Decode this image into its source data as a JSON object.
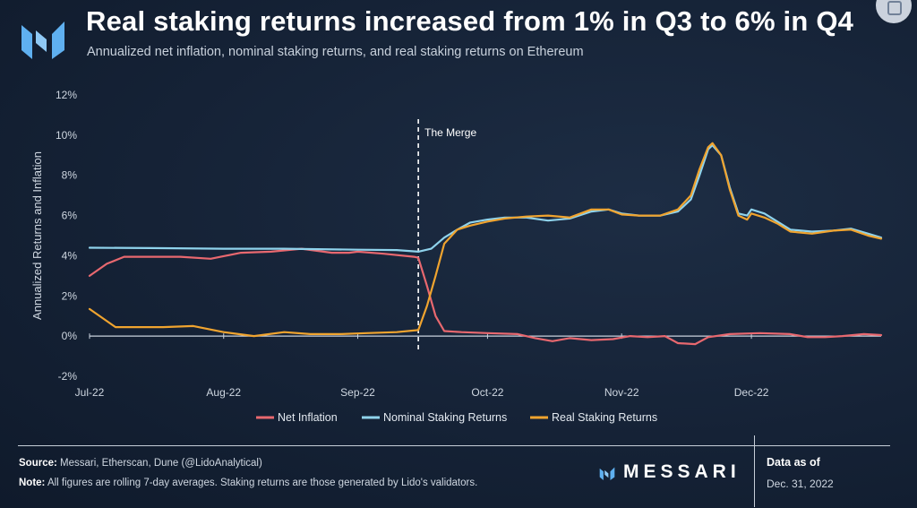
{
  "header": {
    "title": "Real staking returns increased from 1% in Q3 to 6% in Q4",
    "subtitle": "Annualized net inflation, nominal staking returns, and real staking returns on Ethereum"
  },
  "colors": {
    "net_inflation": "#e8686f",
    "nominal": "#8fd3ec",
    "real": "#f0a42f",
    "logo_blue": "#5fb0f0"
  },
  "chart_data": {
    "type": "line",
    "ylabel": "Annualized Returns and Inflation",
    "ylim": [
      -2,
      12
    ],
    "yticks": [
      -2,
      0,
      2,
      4,
      6,
      8,
      10,
      12
    ],
    "ytick_labels": [
      "-2%",
      "0%",
      "2%",
      "4%",
      "6%",
      "8%",
      "10%",
      "12%"
    ],
    "x_range": [
      "2022-07-01",
      "2022-12-31"
    ],
    "xtick_dates": [
      "2022-07-01",
      "2022-08-01",
      "2022-09-01",
      "2022-10-01",
      "2022-11-01",
      "2022-12-01"
    ],
    "xtick_labels": [
      "Jul-22",
      "Aug-22",
      "Sep-22",
      "Oct-22",
      "Nov-22",
      "Dec-22"
    ],
    "annotation": {
      "date": "2022-09-15",
      "label": "The Merge"
    },
    "legend_position": "bottom",
    "series": [
      {
        "name": "Net Inflation",
        "points": [
          [
            "2022-07-01",
            3.0
          ],
          [
            "2022-07-05",
            3.6
          ],
          [
            "2022-07-09",
            3.95
          ],
          [
            "2022-07-15",
            3.95
          ],
          [
            "2022-07-22",
            3.95
          ],
          [
            "2022-07-29",
            3.85
          ],
          [
            "2022-08-05",
            4.15
          ],
          [
            "2022-08-12",
            4.2
          ],
          [
            "2022-08-19",
            4.35
          ],
          [
            "2022-08-26",
            4.15
          ],
          [
            "2022-08-30",
            4.15
          ],
          [
            "2022-09-01",
            4.2
          ],
          [
            "2022-09-07",
            4.1
          ],
          [
            "2022-09-14",
            3.95
          ],
          [
            "2022-09-15",
            3.9
          ],
          [
            "2022-09-17",
            2.5
          ],
          [
            "2022-09-19",
            1.0
          ],
          [
            "2022-09-21",
            0.25
          ],
          [
            "2022-09-25",
            0.2
          ],
          [
            "2022-10-01",
            0.15
          ],
          [
            "2022-10-08",
            0.1
          ],
          [
            "2022-10-12",
            -0.1
          ],
          [
            "2022-10-16",
            -0.25
          ],
          [
            "2022-10-20",
            -0.1
          ],
          [
            "2022-10-25",
            -0.2
          ],
          [
            "2022-10-30",
            -0.15
          ],
          [
            "2022-11-03",
            0.0
          ],
          [
            "2022-11-07",
            -0.05
          ],
          [
            "2022-11-11",
            0.0
          ],
          [
            "2022-11-14",
            -0.35
          ],
          [
            "2022-11-18",
            -0.4
          ],
          [
            "2022-11-21",
            -0.05
          ],
          [
            "2022-11-26",
            0.1
          ],
          [
            "2022-12-03",
            0.15
          ],
          [
            "2022-12-10",
            0.1
          ],
          [
            "2022-12-14",
            -0.05
          ],
          [
            "2022-12-18",
            -0.05
          ],
          [
            "2022-12-22",
            0.0
          ],
          [
            "2022-12-27",
            0.1
          ],
          [
            "2022-12-31",
            0.05
          ]
        ]
      },
      {
        "name": "Nominal Staking Returns",
        "points": [
          [
            "2022-07-01",
            4.4
          ],
          [
            "2022-07-15",
            4.38
          ],
          [
            "2022-08-01",
            4.35
          ],
          [
            "2022-08-15",
            4.35
          ],
          [
            "2022-09-01",
            4.3
          ],
          [
            "2022-09-10",
            4.28
          ],
          [
            "2022-09-15",
            4.2
          ],
          [
            "2022-09-18",
            4.35
          ],
          [
            "2022-09-21",
            4.9
          ],
          [
            "2022-09-24",
            5.3
          ],
          [
            "2022-09-27",
            5.65
          ],
          [
            "2022-10-01",
            5.8
          ],
          [
            "2022-10-05",
            5.9
          ],
          [
            "2022-10-10",
            5.9
          ],
          [
            "2022-10-15",
            5.75
          ],
          [
            "2022-10-20",
            5.85
          ],
          [
            "2022-10-25",
            6.2
          ],
          [
            "2022-10-29",
            6.3
          ],
          [
            "2022-11-01",
            6.1
          ],
          [
            "2022-11-05",
            6.0
          ],
          [
            "2022-11-10",
            6.0
          ],
          [
            "2022-11-14",
            6.2
          ],
          [
            "2022-11-17",
            6.8
          ],
          [
            "2022-11-19",
            8.0
          ],
          [
            "2022-11-21",
            9.3
          ],
          [
            "2022-11-22",
            9.5
          ],
          [
            "2022-11-24",
            9.0
          ],
          [
            "2022-11-26",
            7.4
          ],
          [
            "2022-11-28",
            6.1
          ],
          [
            "2022-11-30",
            6.0
          ],
          [
            "2022-12-01",
            6.3
          ],
          [
            "2022-12-04",
            6.1
          ],
          [
            "2022-12-07",
            5.7
          ],
          [
            "2022-12-10",
            5.3
          ],
          [
            "2022-12-15",
            5.2
          ],
          [
            "2022-12-20",
            5.25
          ],
          [
            "2022-12-24",
            5.35
          ],
          [
            "2022-12-28",
            5.1
          ],
          [
            "2022-12-31",
            4.9
          ]
        ]
      },
      {
        "name": "Real Staking Returns",
        "points": [
          [
            "2022-07-01",
            1.35
          ],
          [
            "2022-07-04",
            0.9
          ],
          [
            "2022-07-07",
            0.45
          ],
          [
            "2022-07-12",
            0.45
          ],
          [
            "2022-07-18",
            0.45
          ],
          [
            "2022-07-25",
            0.5
          ],
          [
            "2022-08-01",
            0.2
          ],
          [
            "2022-08-08",
            0.0
          ],
          [
            "2022-08-15",
            0.2
          ],
          [
            "2022-08-21",
            0.1
          ],
          [
            "2022-08-28",
            0.1
          ],
          [
            "2022-09-03",
            0.15
          ],
          [
            "2022-09-10",
            0.2
          ],
          [
            "2022-09-15",
            0.3
          ],
          [
            "2022-09-17",
            1.5
          ],
          [
            "2022-09-19",
            3.0
          ],
          [
            "2022-09-21",
            4.6
          ],
          [
            "2022-09-24",
            5.3
          ],
          [
            "2022-09-27",
            5.5
          ],
          [
            "2022-10-01",
            5.7
          ],
          [
            "2022-10-05",
            5.85
          ],
          [
            "2022-10-10",
            5.95
          ],
          [
            "2022-10-15",
            6.0
          ],
          [
            "2022-10-20",
            5.9
          ],
          [
            "2022-10-25",
            6.3
          ],
          [
            "2022-10-29",
            6.3
          ],
          [
            "2022-11-01",
            6.05
          ],
          [
            "2022-11-05",
            6.0
          ],
          [
            "2022-11-10",
            6.0
          ],
          [
            "2022-11-14",
            6.3
          ],
          [
            "2022-11-17",
            7.0
          ],
          [
            "2022-11-19",
            8.3
          ],
          [
            "2022-11-21",
            9.4
          ],
          [
            "2022-11-22",
            9.6
          ],
          [
            "2022-11-24",
            9.0
          ],
          [
            "2022-11-26",
            7.3
          ],
          [
            "2022-11-28",
            6.0
          ],
          [
            "2022-11-30",
            5.8
          ],
          [
            "2022-12-01",
            6.1
          ],
          [
            "2022-12-04",
            5.9
          ],
          [
            "2022-12-07",
            5.6
          ],
          [
            "2022-12-10",
            5.2
          ],
          [
            "2022-12-15",
            5.1
          ],
          [
            "2022-12-20",
            5.25
          ],
          [
            "2022-12-24",
            5.3
          ],
          [
            "2022-12-28",
            5.0
          ],
          [
            "2022-12-31",
            4.85
          ]
        ]
      }
    ]
  },
  "footer": {
    "source_label": "Source:",
    "source_text": " Messari, Etherscan, Dune (@LidoAnalytical)",
    "note_label": "Note:",
    "note_text": " All figures are rolling 7-day averages. Staking returns are those generated by Lido's validators.",
    "brand": "MESSARI",
    "as_of_label": "Data as of",
    "as_of_date": "Dec. 31, 2022"
  }
}
